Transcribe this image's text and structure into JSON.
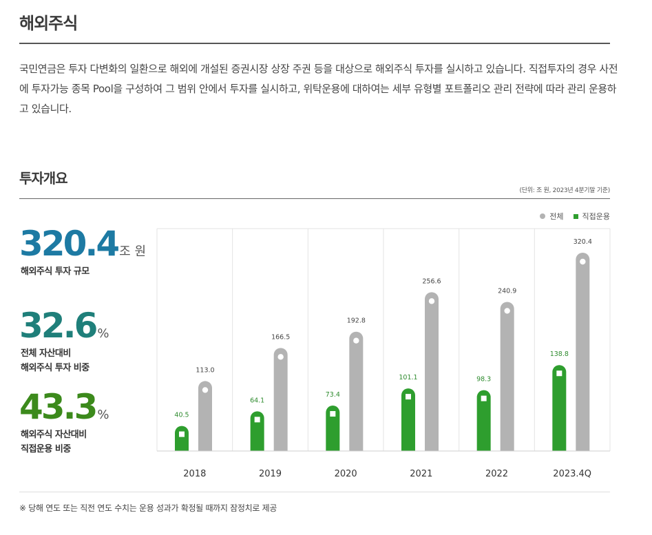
{
  "header": {
    "title": "해외주식"
  },
  "description": "국민연금은 투자 다변화의 일환으로 해외에 개설된 증권시장 상장 주권 등을 대상으로 해외주식 투자를 실시하고 있습니다. 직접투자의 경우 사전에 투자가능 종목 Pool을 구성하여 그 범위 안에서 투자를 실시하고, 위탁운용에 대하여는 세부 유형별 포트폴리오 관리 전략에 따라 관리 운용하고 있습니다.",
  "overview": {
    "title": "투자개요",
    "unit_note": "(단위: 조 원, 2023년 4분기말 기준)"
  },
  "stats": [
    {
      "value": "320.4",
      "unit": "조 원",
      "label_line1": "해외주식 투자 규모",
      "label_line2": "",
      "color": "#1d7aa3"
    },
    {
      "value": "32.6",
      "unit": "%",
      "label_line1": "전체 자산대비",
      "label_line2": "해외주식 투자 비중",
      "color": "#1f7f7a"
    },
    {
      "value": "43.3",
      "unit": "%",
      "label_line1": "해외주식 자산대비",
      "label_line2": "직접운용 비중",
      "color": "#3c8a1c"
    }
  ],
  "legend": {
    "total": "전체",
    "direct": "직접운용"
  },
  "colors": {
    "total": "#b3b3b3",
    "direct": "#2e9e2e",
    "direct_label": "#2e8b2e"
  },
  "chart_data": {
    "type": "bar",
    "title": "투자개요",
    "categories": [
      "2018",
      "2019",
      "2020",
      "2021",
      "2022",
      "2023.4Q"
    ],
    "series": [
      {
        "name": "직접운용",
        "values": [
          40.5,
          64.1,
          73.4,
          101.1,
          98.3,
          138.8
        ]
      },
      {
        "name": "전체",
        "values": [
          113.0,
          166.5,
          192.8,
          256.6,
          240.9,
          320.4
        ]
      }
    ],
    "value_labels": {
      "직접운용": [
        "40.5",
        "64.1",
        "73.4",
        "101.1",
        "98.3",
        "138.8"
      ],
      "전체": [
        "113.0",
        "166.5",
        "192.8",
        "256.6",
        "240.9",
        "320.4"
      ]
    },
    "xlabel": "",
    "ylabel": "조 원",
    "ylim": [
      0,
      320.4
    ],
    "grid": false,
    "legend_position": "top-right"
  },
  "footnote": "※  당해 연도 또는 직전 연도 수치는 운용 성과가 확정될 때까지 잠정치로 제공"
}
